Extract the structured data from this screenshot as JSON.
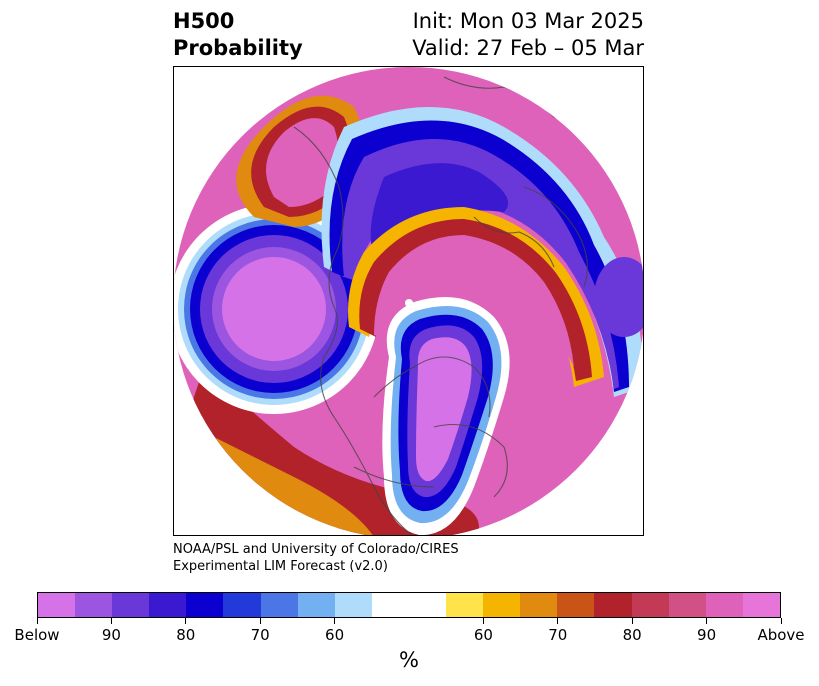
{
  "title": {
    "line1_left": "H500",
    "line2_left": "Probability",
    "line1_right": "Init: Mon 03 Mar 2025",
    "line2_right": "Valid: 27 Feb – 05 Mar"
  },
  "credit": {
    "line1": "NOAA/PSL and University of Colorado/CIRES",
    "line2": "Experimental LIM Forecast (v2.0)"
  },
  "colorbar": {
    "colors": [
      "#d672e8",
      "#9b55e0",
      "#6a38d8",
      "#3a19d0",
      "#0b00cf",
      "#213ad9",
      "#4a76e6",
      "#72b0f2",
      "#b0dcfb",
      "#ffffff",
      "#ffe34a",
      "#f4b400",
      "#e08a10",
      "#c85418",
      "#b1222a",
      "#c23a55",
      "#d15086",
      "#de62b9",
      "#e775d9"
    ],
    "labels": [
      "Below",
      "90",
      "80",
      "70",
      "60",
      "60",
      "70",
      "80",
      "90",
      "Above"
    ],
    "unit": "%"
  }
}
